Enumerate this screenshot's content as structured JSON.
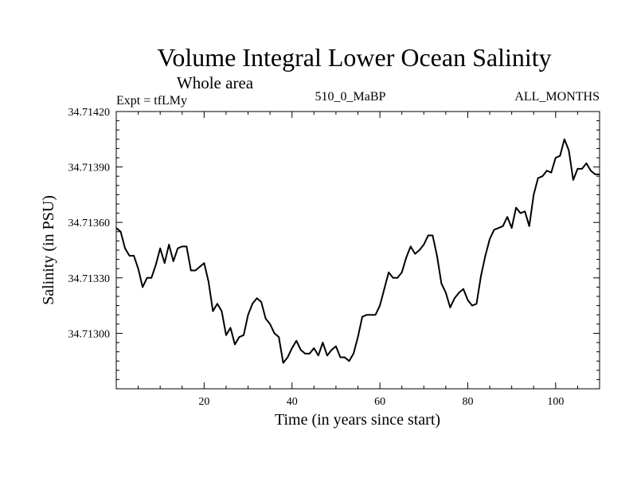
{
  "chart_data": {
    "type": "line",
    "title": "Volume Integral Lower Ocean Salinity",
    "subtitle": "Whole area",
    "expt_label": "Expt = tfLMy",
    "run_label": "510_0_MaBP",
    "months_label": "ALL_MONTHS",
    "xlabel": "Time (in years since start)",
    "ylabel": "Salinity (in PSU)",
    "xlim": [
      0,
      110
    ],
    "ylim": [
      34.7127,
      34.7142
    ],
    "xticks": [
      20,
      40,
      60,
      80,
      100
    ],
    "xtick_labels": [
      "20",
      "40",
      "60",
      "80",
      "100"
    ],
    "yticks": [
      34.713,
      34.7133,
      34.7136,
      34.7139,
      34.7142
    ],
    "ytick_labels": [
      "34.71300",
      "34.71330",
      "34.71360",
      "34.71390",
      "34.71420"
    ],
    "series": [
      {
        "name": "salinity",
        "x": [
          0,
          1,
          2,
          3,
          4,
          5,
          6,
          7,
          8,
          9,
          10,
          11,
          12,
          13,
          14,
          15,
          16,
          17,
          18,
          19,
          20,
          21,
          22,
          23,
          24,
          25,
          26,
          27,
          28,
          29,
          30,
          31,
          32,
          33,
          34,
          35,
          36,
          37,
          38,
          39,
          40,
          41,
          42,
          43,
          44,
          45,
          46,
          47,
          48,
          49,
          50,
          51,
          52,
          53,
          54,
          55,
          56,
          57,
          58,
          59,
          60,
          61,
          62,
          63,
          64,
          65,
          66,
          67,
          68,
          69,
          70,
          71,
          72,
          73,
          74,
          75,
          76,
          77,
          78,
          79,
          80,
          81,
          82,
          83,
          84,
          85,
          86,
          87,
          88,
          89,
          90,
          91,
          92,
          93,
          94,
          95,
          96,
          97,
          98,
          99,
          100,
          101,
          102,
          103,
          104,
          105,
          106,
          107,
          108,
          109,
          110
        ],
        "y": [
          34.71357,
          34.71355,
          34.71346,
          34.71342,
          34.71342,
          34.71335,
          34.71325,
          34.7133,
          34.7133,
          34.71337,
          34.71346,
          34.71338,
          34.71348,
          34.71339,
          34.71346,
          34.71347,
          34.71347,
          34.71334,
          34.71334,
          34.71336,
          34.71338,
          34.71328,
          34.71312,
          34.71316,
          34.71312,
          34.71299,
          34.71303,
          34.71294,
          34.71298,
          34.71299,
          34.7131,
          34.71316,
          34.71319,
          34.71317,
          34.71308,
          34.71305,
          34.713,
          34.71298,
          34.71284,
          34.71287,
          34.71292,
          34.71296,
          34.71291,
          34.71289,
          34.71289,
          34.71292,
          34.71288,
          34.71295,
          34.71288,
          34.71291,
          34.71293,
          34.71287,
          34.71287,
          34.71285,
          34.71289,
          34.71298,
          34.71309,
          34.7131,
          34.7131,
          34.7131,
          34.71315,
          34.71324,
          34.71333,
          34.7133,
          34.7133,
          34.71333,
          34.71341,
          34.71347,
          34.71343,
          34.71345,
          34.71348,
          34.71353,
          34.71353,
          34.71342,
          34.71327,
          34.71322,
          34.71314,
          34.71319,
          34.71322,
          34.71324,
          34.71318,
          34.71315,
          34.71316,
          34.71331,
          34.71342,
          34.71351,
          34.71356,
          34.71357,
          34.71358,
          34.71363,
          34.71357,
          34.71368,
          34.71365,
          34.71366,
          34.71358,
          34.71375,
          34.71384,
          34.71385,
          34.71388,
          34.71387,
          34.71395,
          34.71396,
          34.71405,
          34.71399,
          34.71383,
          34.71389,
          34.71389,
          34.71392,
          34.71388,
          34.71386,
          34.71386
        ]
      }
    ],
    "grid": false,
    "line_color": "#000000"
  }
}
